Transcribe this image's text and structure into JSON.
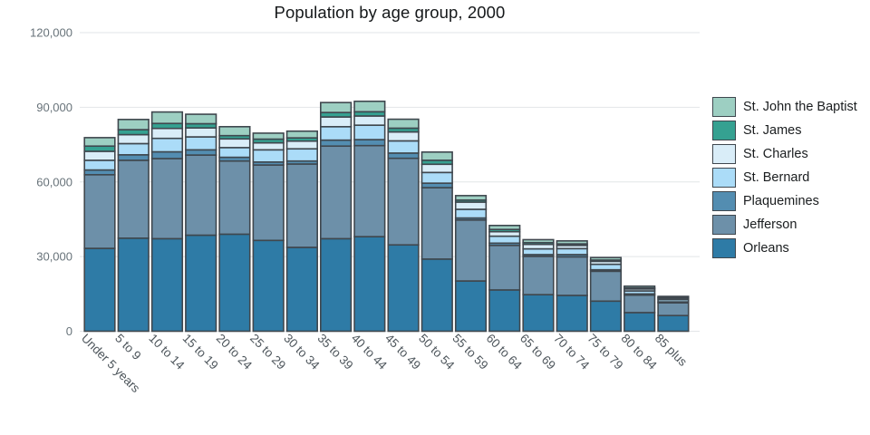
{
  "title": "Population by age group, 2000",
  "chart_data": {
    "type": "bar",
    "stacked": true,
    "title": "Population by age group, 2000",
    "categories": [
      "Under 5 years",
      "5 to 9",
      "10 to 14",
      "15 to 19",
      "20 to 24",
      "25 to 29",
      "30 to 34",
      "35 to 39",
      "40 to 44",
      "45 to 49",
      "50 to 54",
      "55 to 59",
      "60 to 64",
      "65 to 69",
      "70 to 74",
      "75 to 79",
      "80 to 84",
      "85 plus"
    ],
    "series": [
      {
        "name": "Orleans",
        "color": "#2e7ba6",
        "values": [
          33300,
          37400,
          37200,
          38600,
          39000,
          36500,
          33700,
          37200,
          38000,
          34700,
          29000,
          20200,
          16600,
          14700,
          14400,
          12100,
          7500,
          6300
        ]
      },
      {
        "name": "Jefferson",
        "color": "#6d90a9",
        "values": [
          29600,
          31300,
          32200,
          32200,
          29400,
          30300,
          33500,
          37200,
          36600,
          34800,
          28700,
          24500,
          17900,
          15400,
          15500,
          12000,
          7000,
          5100
        ]
      },
      {
        "name": "Plaquemines",
        "color": "#538db1",
        "values": [
          1900,
          2200,
          2700,
          2100,
          1500,
          1200,
          1200,
          2400,
          2400,
          2100,
          1800,
          800,
          900,
          700,
          900,
          600,
          500,
          400
        ]
      },
      {
        "name": "St. Bernard",
        "color": "#abdcf8",
        "values": [
          3900,
          4500,
          5400,
          5200,
          3900,
          4900,
          4900,
          5400,
          5800,
          4900,
          4300,
          3500,
          2800,
          2300,
          2400,
          2200,
          1200,
          900
        ]
      },
      {
        "name": "St. Charles",
        "color": "#d9edf8",
        "values": [
          3600,
          3600,
          4000,
          3600,
          3500,
          2800,
          3100,
          3900,
          3700,
          3600,
          3300,
          2900,
          1800,
          1800,
          1300,
          1200,
          800,
          600
        ]
      },
      {
        "name": "St. James",
        "color": "#35a191",
        "values": [
          2100,
          2000,
          2000,
          1700,
          1300,
          1500,
          1300,
          1800,
          1700,
          1500,
          1600,
          800,
          900,
          700,
          600,
          500,
          400,
          300
        ]
      },
      {
        "name": "St. John the Baptist",
        "color": "#9dcfc2",
        "values": [
          3400,
          4100,
          4600,
          3800,
          3600,
          2400,
          2700,
          4000,
          4200,
          3600,
          3300,
          1800,
          1600,
          1200,
          1200,
          1000,
          700,
          400
        ]
      }
    ],
    "stack_order": "first series at bottom",
    "legend": {
      "position": "right",
      "order_top_to_bottom": [
        "St. John the Baptist",
        "St. James",
        "St. Charles",
        "St. Bernard",
        "Plaquemines",
        "Jefferson",
        "Orleans"
      ]
    },
    "ylim": [
      0,
      120000
    ],
    "yticks": [
      0,
      30000,
      60000,
      90000,
      120000
    ],
    "ytick_labels": [
      "0",
      "30,000",
      "60,000",
      "90,000",
      "120,000"
    ],
    "xlabel": "",
    "ylabel": "",
    "grid": "horizontal",
    "x_tick_angle_deg": 45
  },
  "colors": {
    "background": "#ffffff",
    "bar_border": "#3f474e",
    "grid": "#e2e5e7",
    "y_tick_text": "#68737a",
    "x_tick_text": "#4e565c",
    "title_text": "#15181a"
  }
}
